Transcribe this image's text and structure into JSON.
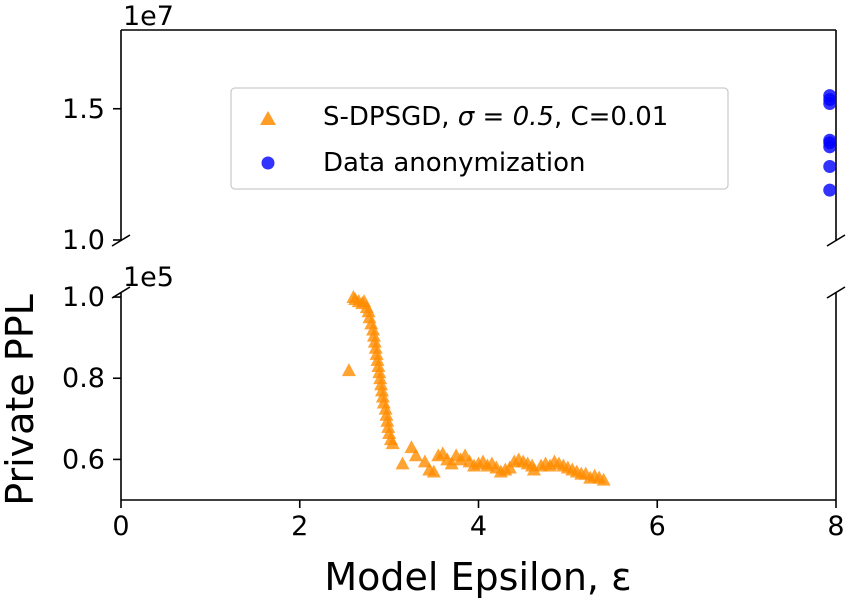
{
  "chart_data": {
    "type": "scatter",
    "ylabel": "Private PPL",
    "xlabel": "Model Epsilon, ε",
    "xlim": [
      0,
      8
    ],
    "x_ticks": [
      {
        "value": 0,
        "label": "0"
      },
      {
        "value": 2,
        "label": "2"
      },
      {
        "value": 4,
        "label": "4"
      },
      {
        "value": 6,
        "label": "6"
      },
      {
        "value": 8,
        "label": "8"
      }
    ],
    "top_panel": {
      "offset_label": "1e7",
      "ylim": [
        10000000,
        18000000
      ],
      "y_ticks": [
        {
          "value": 10000000,
          "label": "1.0"
        },
        {
          "value": 15000000,
          "label": "1.5"
        }
      ]
    },
    "bottom_panel": {
      "offset_label": "1e5",
      "ylim": [
        50000,
        101000
      ],
      "y_ticks": [
        {
          "value": 60000,
          "label": "0.6"
        },
        {
          "value": 80000,
          "label": "0.8"
        },
        {
          "value": 100000,
          "label": "1.0"
        }
      ]
    },
    "legend": {
      "position": "upper-center of top panel",
      "entries": [
        {
          "series": "sdpsgd",
          "label_prefix": "S-DPSGD, ",
          "label_math": "σ = 0.5",
          "label_suffix": ", C=0.01"
        },
        {
          "series": "anon",
          "label": "Data anonymization"
        }
      ]
    },
    "series": [
      {
        "id": "sdpsgd",
        "name": "S-DPSGD, σ=0.5, C=0.01",
        "marker": "triangle",
        "color": "#ff8c00",
        "panel": "bottom",
        "points": [
          [
            2.55,
            82000
          ],
          [
            2.6,
            100000
          ],
          [
            2.62,
            99500
          ],
          [
            2.66,
            99000
          ],
          [
            2.7,
            98500
          ],
          [
            2.72,
            99000
          ],
          [
            2.75,
            97500
          ],
          [
            2.77,
            96500
          ],
          [
            2.78,
            95000
          ],
          [
            2.8,
            93500
          ],
          [
            2.82,
            92000
          ],
          [
            2.83,
            90500
          ],
          [
            2.84,
            89000
          ],
          [
            2.85,
            87500
          ],
          [
            2.86,
            86000
          ],
          [
            2.87,
            84500
          ],
          [
            2.88,
            83000
          ],
          [
            2.89,
            81500
          ],
          [
            2.9,
            80000
          ],
          [
            2.91,
            78500
          ],
          [
            2.92,
            77000
          ],
          [
            2.93,
            75500
          ],
          [
            2.94,
            74000
          ],
          [
            2.96,
            72500
          ],
          [
            2.97,
            71000
          ],
          [
            2.98,
            69500
          ],
          [
            2.99,
            68000
          ],
          [
            3.0,
            66500
          ],
          [
            3.02,
            65000
          ],
          [
            3.04,
            64000
          ],
          [
            3.15,
            59000
          ],
          [
            3.25,
            63000
          ],
          [
            3.3,
            61000
          ],
          [
            3.4,
            59500
          ],
          [
            3.45,
            57500
          ],
          [
            3.5,
            57000
          ],
          [
            3.55,
            61000
          ],
          [
            3.6,
            61500
          ],
          [
            3.65,
            60000
          ],
          [
            3.7,
            59000
          ],
          [
            3.75,
            61000
          ],
          [
            3.8,
            60000
          ],
          [
            3.85,
            61000
          ],
          [
            3.9,
            59500
          ],
          [
            3.95,
            58500
          ],
          [
            4.0,
            59000
          ],
          [
            4.05,
            59500
          ],
          [
            4.1,
            58500
          ],
          [
            4.15,
            59000
          ],
          [
            4.2,
            58000
          ],
          [
            4.25,
            57000
          ],
          [
            4.3,
            57500
          ],
          [
            4.35,
            58000
          ],
          [
            4.4,
            59500
          ],
          [
            4.45,
            60000
          ],
          [
            4.5,
            59500
          ],
          [
            4.55,
            59000
          ],
          [
            4.6,
            58500
          ],
          [
            4.62,
            57500
          ],
          [
            4.7,
            58500
          ],
          [
            4.75,
            59000
          ],
          [
            4.8,
            58500
          ],
          [
            4.85,
            59500
          ],
          [
            4.9,
            59000
          ],
          [
            4.95,
            58500
          ],
          [
            5.0,
            58000
          ],
          [
            5.05,
            57500
          ],
          [
            5.1,
            57000
          ],
          [
            5.15,
            56500
          ],
          [
            5.2,
            56500
          ],
          [
            5.25,
            55500
          ],
          [
            5.3,
            56000
          ],
          [
            5.35,
            55500
          ],
          [
            5.4,
            55000
          ]
        ]
      },
      {
        "id": "anon",
        "name": "Data anonymization",
        "marker": "circle",
        "color": "#0000ff",
        "panel": "top",
        "points": [
          [
            7.93,
            15500000
          ],
          [
            7.93,
            15350000
          ],
          [
            7.93,
            15200000
          ],
          [
            7.93,
            13800000
          ],
          [
            7.93,
            13700000
          ],
          [
            7.93,
            13550000
          ],
          [
            7.93,
            12800000
          ],
          [
            7.93,
            11900000
          ]
        ]
      }
    ]
  }
}
